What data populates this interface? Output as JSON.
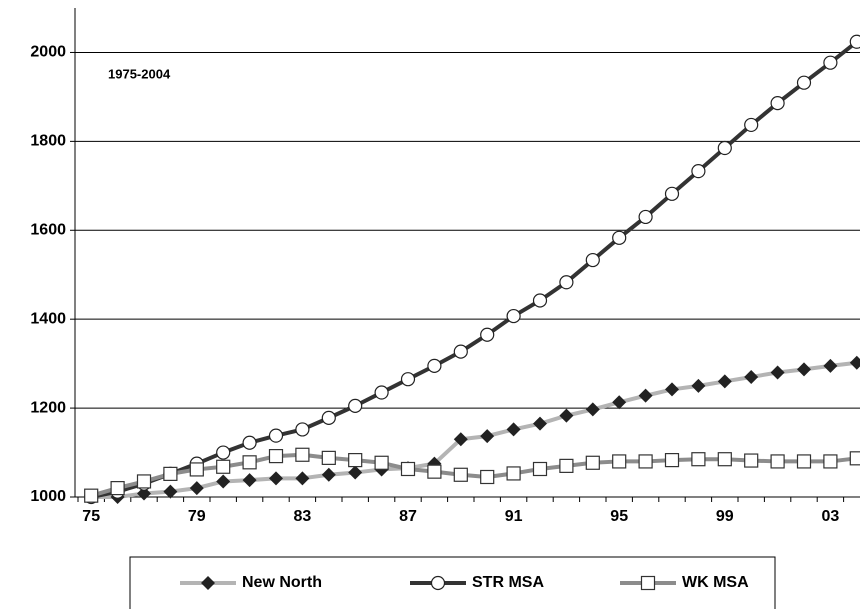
{
  "chart_data": {
    "type": "line",
    "annotation": "1975-2004",
    "categories": [
      "75",
      null,
      null,
      null,
      "79",
      null,
      null,
      null,
      "83",
      null,
      null,
      null,
      "87",
      null,
      null,
      null,
      "91",
      null,
      null,
      null,
      "95",
      null,
      null,
      null,
      "99",
      null,
      null,
      null,
      "03",
      null
    ],
    "series": [
      {
        "name": "New North",
        "color": "#b4b4b4",
        "marker": "diamond",
        "values": [
          1000,
          1000,
          1008,
          1012,
          1020,
          1035,
          1038,
          1042,
          1042,
          1050,
          1055,
          1062,
          1065,
          1075,
          1130,
          1137,
          1152,
          1165,
          1183,
          1197,
          1213,
          1228,
          1242,
          1250,
          1260,
          1270,
          1280,
          1287,
          1295,
          1302
        ]
      },
      {
        "name": "STR MSA",
        "color": "#333333",
        "marker": "circle",
        "values": [
          1000,
          1012,
          1030,
          1052,
          1075,
          1100,
          1122,
          1138,
          1152,
          1178,
          1205,
          1235,
          1265,
          1295,
          1327,
          1365,
          1407,
          1442,
          1483,
          1533,
          1583,
          1630,
          1682,
          1733,
          1785,
          1837,
          1886,
          1932,
          1977,
          2024
        ]
      },
      {
        "name": "WK MSA",
        "color": "#8c8c8c",
        "marker": "square",
        "values": [
          1003,
          1020,
          1035,
          1052,
          1062,
          1068,
          1078,
          1092,
          1095,
          1088,
          1083,
          1077,
          1063,
          1057,
          1050,
          1045,
          1053,
          1063,
          1070,
          1077,
          1080,
          1080,
          1083,
          1085,
          1085,
          1082,
          1080,
          1080,
          1080,
          1087
        ]
      }
    ],
    "ylim": [
      1000,
      2100
    ],
    "yticks": [
      1000,
      1200,
      1400,
      1600,
      1800,
      2000
    ],
    "grid": true
  }
}
